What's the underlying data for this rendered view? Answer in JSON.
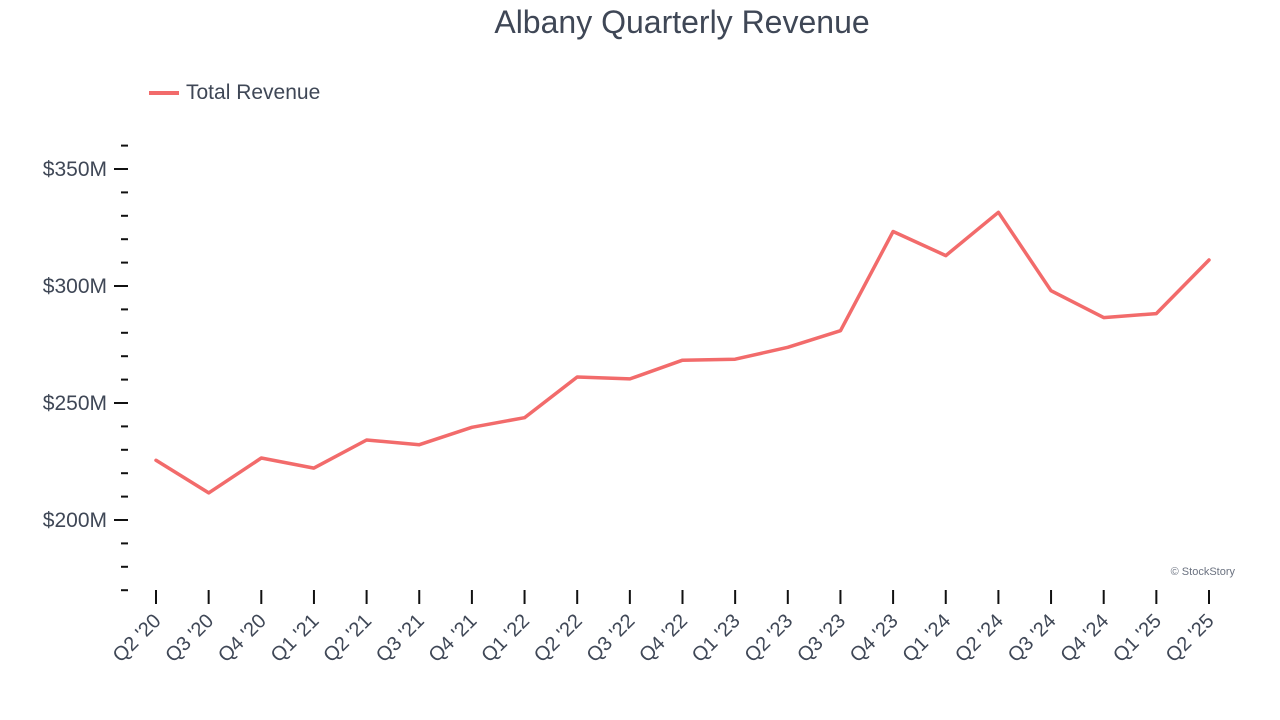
{
  "chart_data": {
    "type": "line",
    "title": "Albany Quarterly Revenue",
    "xlabel": "",
    "ylabel": "",
    "x": [
      "Q2 '20",
      "Q3 '20",
      "Q4 '20",
      "Q1 '21",
      "Q2 '21",
      "Q3 '21",
      "Q4 '21",
      "Q1 '22",
      "Q2 '22",
      "Q3 '22",
      "Q4 '22",
      "Q1 '23",
      "Q2 '23",
      "Q3 '23",
      "Q4 '23",
      "Q1 '24",
      "Q2 '24",
      "Q3 '24",
      "Q4 '24",
      "Q1 '25",
      "Q2 '25"
    ],
    "series": [
      {
        "name": "Total Revenue",
        "color": "#f26b6b",
        "values": [
          225.5,
          211.6,
          226.5,
          222.2,
          234.2,
          232.2,
          239.6,
          243.7,
          261.1,
          260.3,
          268.3,
          268.7,
          273.8,
          280.9,
          323.3,
          313.0,
          331.5,
          298.0,
          286.5,
          288.2,
          311.1
        ]
      }
    ],
    "ylim": [
      170,
      360
    ],
    "yticks": [
      200,
      250,
      300,
      350
    ],
    "ytick_labels": [
      "$200M",
      "$250M",
      "$300M",
      "$350M"
    ],
    "grid": false,
    "legend_position": "top-left"
  },
  "watermark": "© StockStory"
}
